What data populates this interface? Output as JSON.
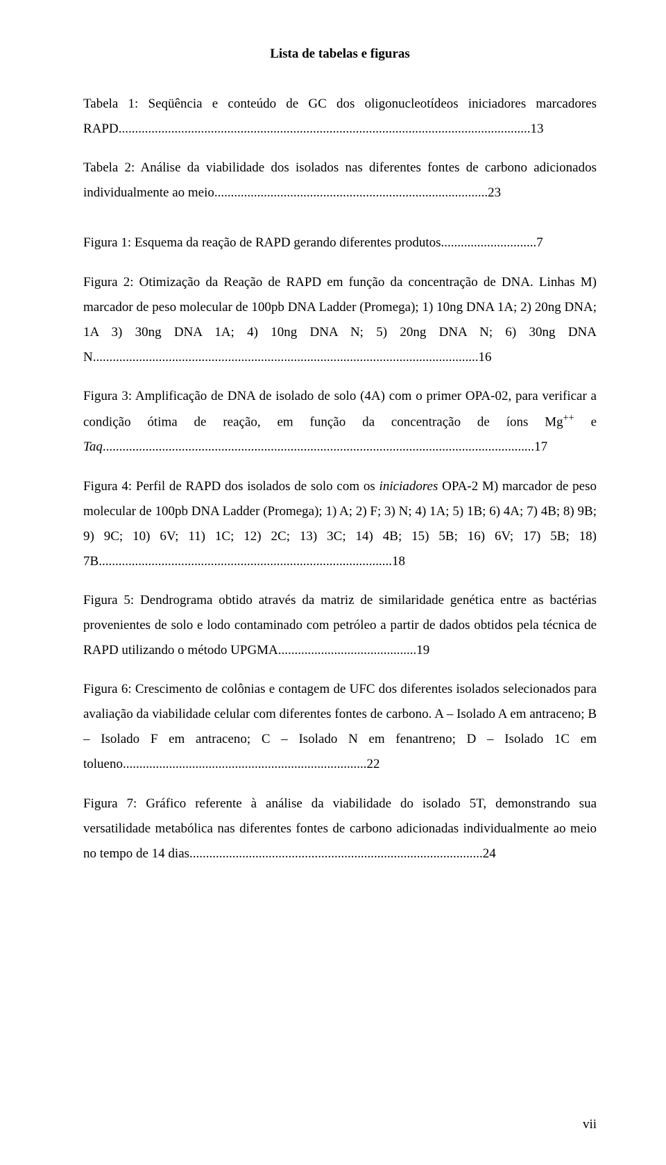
{
  "title": "Lista de tabelas e figuras",
  "entries": [
    {
      "body": "Tabela 1: Seqüência e conteúdo de GC dos oligonucleotídeos iniciadores marcadores RAPD",
      "dots": ".............................................................................................................................",
      "page": "13"
    },
    {
      "body": "Tabela 2: Análise da viabilidade dos isolados nas diferentes fontes de carbono adicionados individualmente ao meio",
      "dots": "...................................................................................",
      "page": "23"
    },
    {
      "body": "Figura 1: Esquema da reação de RAPD gerando diferentes produtos",
      "dots": ".............................",
      "page": "7"
    },
    {
      "body": "Figura 2: Otimização da Reação de RAPD em função da concentração de DNA. Linhas M) marcador de peso molecular de 100pb DNA Ladder (Promega); 1) 10ng DNA 1A; 2) 20ng DNA; 1A 3) 30ng DNA 1A; 4) 10ng DNA N; 5) 20ng DNA  N; 6) 30ng DNA N",
      "dots": ".....................................................................................................................",
      "page": "16"
    },
    {
      "body_pre": "Figura 3: Amplificação de DNA de isolado de solo (4A) com o primer OPA-02, para verificar a condição ótima de reação, em função da concentração de íons Mg",
      "body_sup": "++",
      "body_mid": " e ",
      "body_italic": "Taq",
      "dots": "...................................................................................................................................",
      "page": "17"
    },
    {
      "body_pre": "Figura 4: Perfil de RAPD dos isolados de solo com os ",
      "body_italic": "iniciadores",
      "body_post": " OPA-2 M) marcador de peso molecular de 100pb DNA Ladder (Promega); 1) A; 2) F; 3) N; 4) 1A; 5) 1B; 6) 4A; 7) 4B; 8) 9B; 9) 9C; 10) 6V; 11) 1C; 12) 2C; 13) 3C; 14) 4B; 15) 5B; 16) 6V; 17) 5B; 18) 7B",
      "dots": ".........................................................................................",
      "page": "18"
    },
    {
      "body": "Figura 5: Dendrograma obtido através da matriz de similaridade genética entre as bactérias provenientes de solo e lodo contaminado com petróleo a partir de dados obtidos pela técnica de RAPD utilizando o método UPGMA",
      "dots": "..........................................",
      "page": "19"
    },
    {
      "body": "Figura 6: Crescimento de colônias e contagem de UFC dos diferentes isolados selecionados para avaliação da viabilidade celular com diferentes fontes de carbono. A – Isolado A em antraceno; B – Isolado F em antraceno; C – Isolado N em fenantreno; D – Isolado 1C em tolueno",
      "dots": "..........................................................................",
      "page": "22"
    },
    {
      "body": "Figura 7: Gráfico referente à análise da viabilidade do isolado 5T, demonstrando sua versatilidade metabólica nas diferentes fontes de carbono adicionadas individualmente ao meio no tempo de 14 dias",
      "dots": ".........................................................................................",
      "page": "24"
    }
  ],
  "page_roman": "vii"
}
